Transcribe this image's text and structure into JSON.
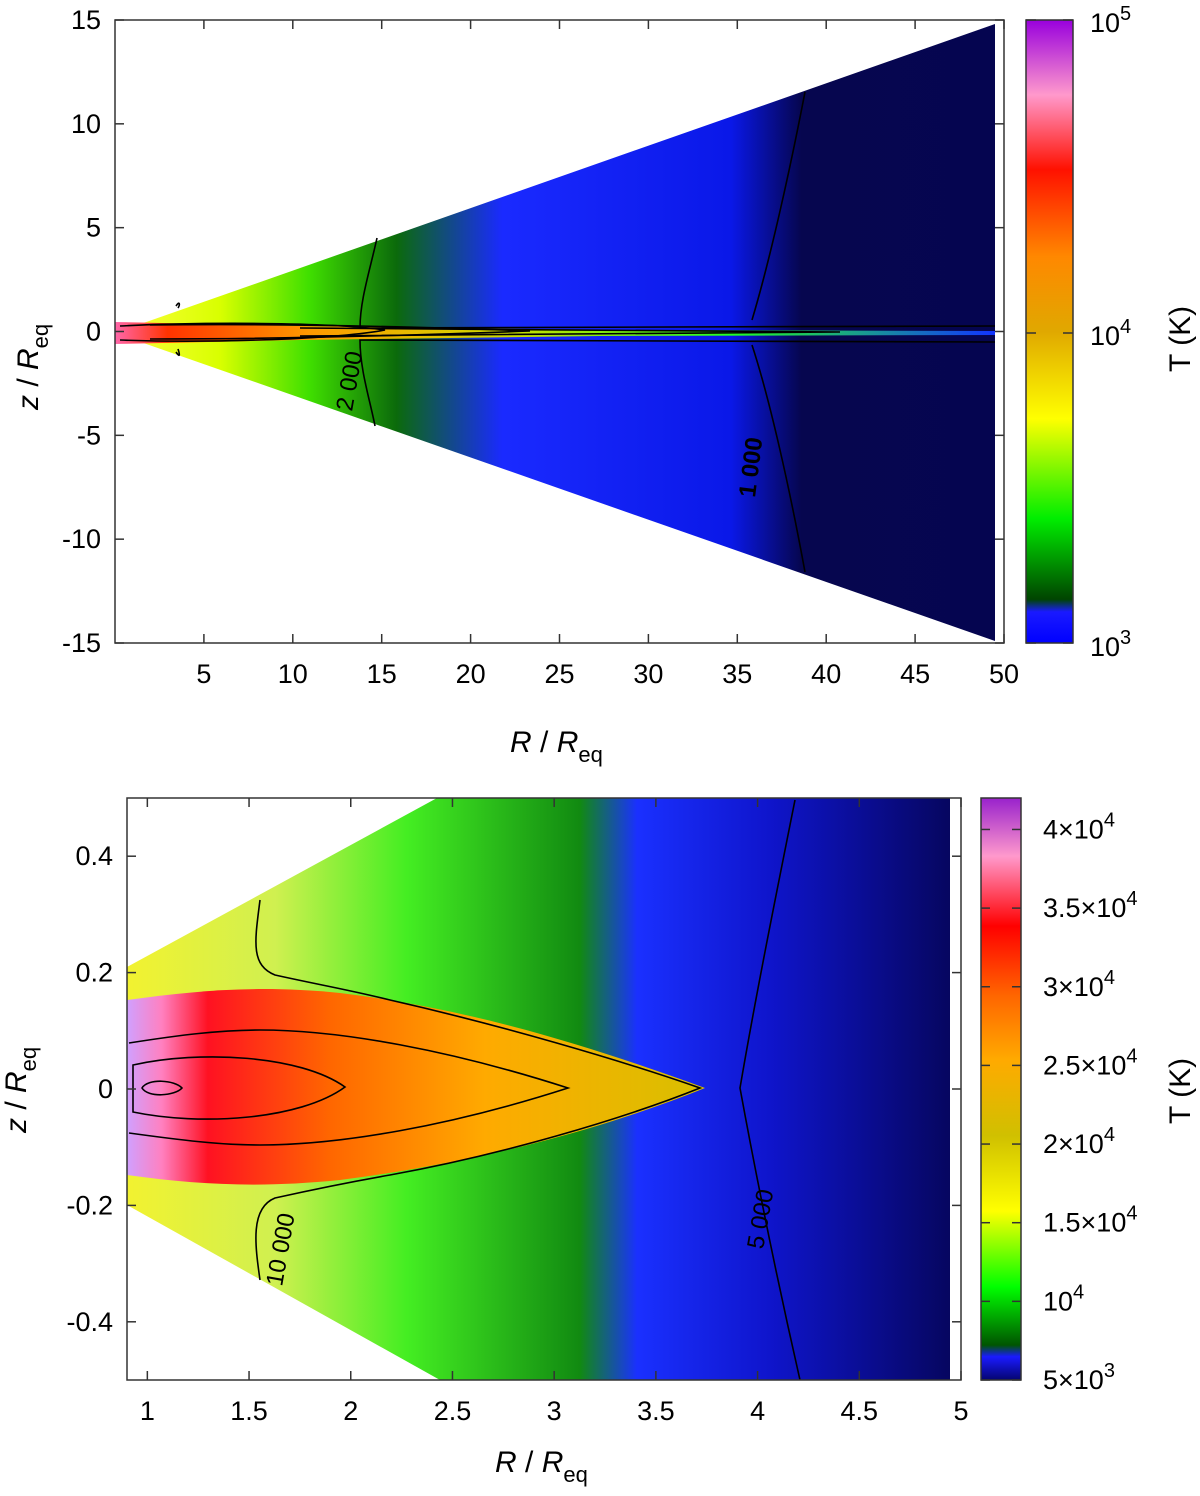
{
  "chart_data": [
    {
      "type": "heatmap",
      "panel": "top",
      "xlabel": {
        "main": "R",
        "sep": " / ",
        "base": "R",
        "sub": "eq"
      },
      "ylabel": {
        "main": "z",
        "sep": " / ",
        "base": "R",
        "sub": "eq"
      },
      "xlim": [
        0,
        50
      ],
      "ylim": [
        -15,
        15
      ],
      "x_ticks": [
        "5",
        "10",
        "15",
        "20",
        "25",
        "30",
        "35",
        "40",
        "45",
        "50"
      ],
      "y_ticks": [
        "15",
        "10",
        "5",
        "0",
        "-5",
        "-10",
        "-15"
      ],
      "colorbar": {
        "label": "T (K)",
        "scale": "log",
        "range": [
          1000,
          100000
        ],
        "tick_labels": [
          {
            "base": "10",
            "exp": "5"
          },
          {
            "base": "10",
            "exp": "4"
          },
          {
            "base": "10",
            "exp": "3"
          }
        ]
      },
      "contour_labels": [
        "2 000",
        "1 000"
      ],
      "domain_opening_slope": 0.3
    },
    {
      "type": "heatmap",
      "panel": "bottom",
      "xlabel": {
        "main": "R",
        "sep": " / ",
        "base": "R",
        "sub": "eq"
      },
      "ylabel": {
        "main": "z",
        "sep": " / ",
        "base": "R",
        "sub": "eq"
      },
      "xlim": [
        0.9,
        5
      ],
      "ylim": [
        -0.5,
        0.5
      ],
      "x_ticks": [
        "1",
        "1.5",
        "2",
        "2.5",
        "3",
        "3.5",
        "4",
        "4.5",
        "5"
      ],
      "y_ticks": [
        "0.4",
        "0.2",
        "0",
        "-0.2",
        "-0.4"
      ],
      "colorbar": {
        "label": "T (K)",
        "scale": "linear",
        "range": [
          5000,
          42000
        ],
        "tick_labels": [
          {
            "base": "4×10",
            "exp": "4"
          },
          {
            "base": "3.5×10",
            "exp": "4"
          },
          {
            "base": "3×10",
            "exp": "4"
          },
          {
            "base": "2.5×10",
            "exp": "4"
          },
          {
            "base": "2×10",
            "exp": "4"
          },
          {
            "base": "1.5×10",
            "exp": "4"
          },
          {
            "base": "10",
            "exp": "4"
          },
          {
            "base": "5×10",
            "exp": "3"
          }
        ]
      },
      "contour_labels": [
        "10 000",
        "5 000"
      ],
      "domain_opening_slope": 0.2
    }
  ],
  "colors": {
    "colormap": [
      "#0a0a66",
      "#1a1aff",
      "#006600",
      "#00ff00",
      "#ffff00",
      "#ffa500",
      "#ff0000",
      "#ff99cc",
      "#8800cc"
    ]
  }
}
